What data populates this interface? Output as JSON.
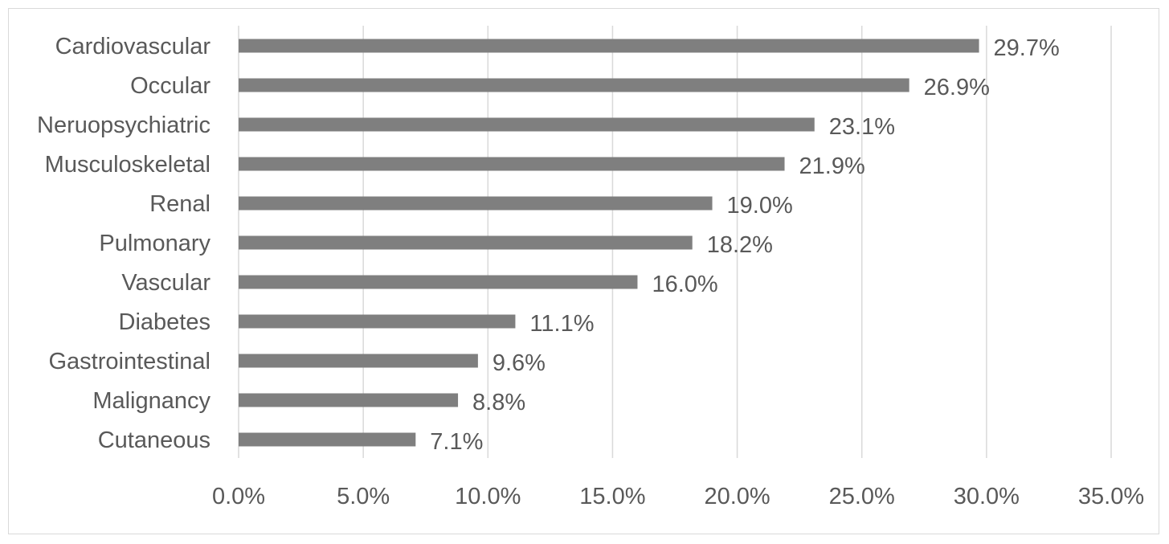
{
  "chart_data": {
    "type": "bar",
    "orientation": "horizontal",
    "categories": [
      "Cardiovascular",
      "Occular",
      "Neruopsychiatric",
      "Musculoskeletal",
      "Renal",
      "Pulmonary",
      "Vascular",
      "Diabetes",
      "Gastrointestinal",
      "Malignancy",
      "Cutaneous"
    ],
    "values": [
      29.7,
      26.9,
      23.1,
      21.9,
      19.0,
      18.2,
      16.0,
      11.1,
      9.6,
      8.8,
      7.1
    ],
    "value_labels": [
      "29.7%",
      "26.9%",
      "23.1%",
      "21.9%",
      "19.0%",
      "18.2%",
      "16.0%",
      "11.1%",
      "9.6%",
      "8.8%",
      "7.1%"
    ],
    "x_ticks": [
      0,
      5,
      10,
      15,
      20,
      25,
      30,
      35
    ],
    "x_tick_labels": [
      "0.0%",
      "5.0%",
      "10.0%",
      "15.0%",
      "20.0%",
      "25.0%",
      "30.0%",
      "35.0%"
    ],
    "xlim": [
      0,
      35
    ],
    "grid": true,
    "bar_color": "#7f7f7f",
    "grid_color": "#d9d9d9",
    "text_color": "#595959"
  }
}
